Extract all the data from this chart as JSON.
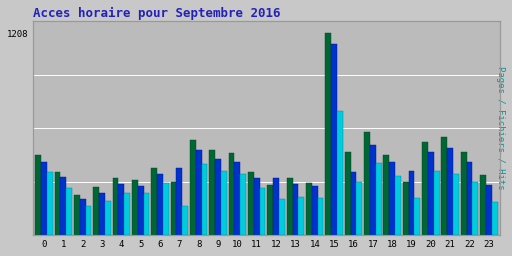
{
  "title": "Acces horaire pour Septembre 2016",
  "ylabel_right": "Pages / Fichiers / Hits",
  "hours": [
    0,
    1,
    2,
    3,
    4,
    5,
    6,
    7,
    8,
    9,
    10,
    11,
    12,
    13,
    14,
    15,
    16,
    17,
    18,
    19,
    20,
    21,
    22,
    23
  ],
  "pages": [
    480,
    380,
    240,
    290,
    340,
    330,
    400,
    320,
    570,
    510,
    490,
    380,
    300,
    340,
    310,
    1208,
    500,
    620,
    480,
    320,
    560,
    590,
    500,
    360
  ],
  "fichiers": [
    440,
    350,
    215,
    255,
    305,
    295,
    365,
    400,
    510,
    455,
    435,
    345,
    340,
    305,
    295,
    1145,
    380,
    540,
    440,
    385,
    500,
    520,
    440,
    300
  ],
  "hits": [
    375,
    285,
    175,
    205,
    255,
    255,
    315,
    175,
    425,
    385,
    365,
    285,
    215,
    230,
    225,
    745,
    320,
    430,
    355,
    225,
    385,
    365,
    320,
    200
  ],
  "color_pages": "#006633",
  "color_fichiers": "#0033cc",
  "color_hits": "#00ccdd",
  "background_plot": "#bbbbbb",
  "background_fig": "#c8c8c8",
  "ylim": [
    0,
    1280
  ],
  "ytick_val": 1208,
  "title_color": "#2222bb",
  "ylabel_color": "#009999",
  "bar_width": 0.3,
  "figwidth": 5.12,
  "figheight": 2.56,
  "dpi": 100
}
